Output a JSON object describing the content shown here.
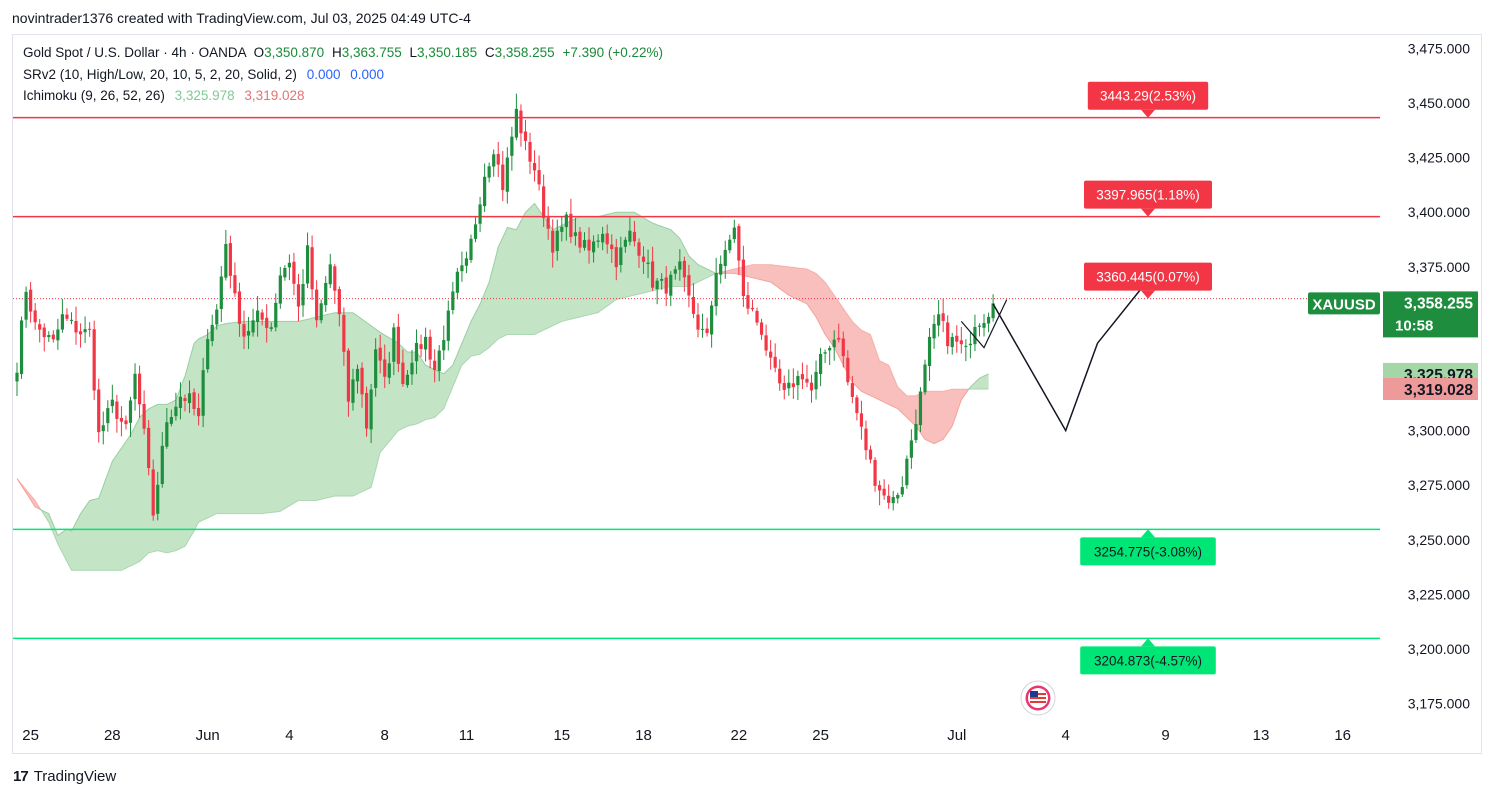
{
  "header": {
    "attribution": "novintrader1376 created with TradingView.com, Jul 03, 2025 04:49 UTC-4"
  },
  "legend": {
    "symbol_line": "Gold Spot / U.S. Dollar · 4h · OANDA",
    "o_label": "O",
    "o_value": "3,350.870",
    "h_label": "H",
    "h_value": "3,363.755",
    "l_label": "L",
    "l_value": "3,350.185",
    "c_label": "C",
    "c_value": "3,358.255",
    "change": "+7.390 (+0.22%)",
    "indicator1": "SRv2 (10, High/Low, 20, 10, 5, 2, 20, Solid, 2)",
    "indicator1_v1": "0.000",
    "indicator1_v2": "0.000",
    "indicator2": "Ichimoku (9, 26, 52, 26)",
    "indicator2_v1": "3,325.978",
    "indicator2_v2": "3,319.028"
  },
  "footer": {
    "logo_mark": "17",
    "brand": "TradingView"
  },
  "colors": {
    "up": "#26a69a",
    "upbody": "#1e8e3e",
    "down": "#f23645",
    "resistance": "#f23645",
    "support": "#00e676",
    "cloud_bull": "#a5d6a7",
    "cloud_bear": "#f7a9a7"
  },
  "chart_data": {
    "type": "candlestick",
    "symbol": "XAUUSD",
    "timeframe": "4h",
    "y_range": [
      3165,
      3480
    ],
    "y_ticks": [
      "3,475.000",
      "3,450.000",
      "3,425.000",
      "3,400.000",
      "3,375.000",
      "3,350.000",
      "3,325.000",
      "3,300.000",
      "3,275.000",
      "3,250.000",
      "3,225.000",
      "3,200.000",
      "3,175.000"
    ],
    "y_tick_values": [
      3475,
      3450,
      3425,
      3400,
      3375,
      3350,
      3325,
      3300,
      3275,
      3250,
      3225,
      3200,
      3175
    ],
    "x_ticks": [
      {
        "label": "25",
        "i": 3
      },
      {
        "label": "28",
        "i": 21
      },
      {
        "label": "Jun",
        "i": 42
      },
      {
        "label": "4",
        "i": 60
      },
      {
        "label": "8",
        "i": 81
      },
      {
        "label": "11",
        "i": 99
      },
      {
        "label": "15",
        "i": 120
      },
      {
        "label": "18",
        "i": 138
      },
      {
        "label": "22",
        "i": 159
      },
      {
        "label": "25",
        "i": 177
      },
      {
        "label": "Jul",
        "i": 207
      },
      {
        "label": "4",
        "i": 231
      },
      {
        "label": "9",
        "i": 253
      },
      {
        "label": "13",
        "i": 274
      },
      {
        "label": "16",
        "i": 292
      }
    ],
    "bar_count_visible": 300,
    "levels": [
      {
        "price": 3443.29,
        "label": "3443.29(2.53%)",
        "kind": "resistance",
        "style": "solid"
      },
      {
        "price": 3397.965,
        "label": "3397.965(1.18%)",
        "kind": "resistance",
        "style": "solid"
      },
      {
        "price": 3360.445,
        "label": "3360.445(0.07%)",
        "kind": "resistance",
        "style": "dotted"
      },
      {
        "price": 3254.775,
        "label": "3254.775(-3.08%)",
        "kind": "support",
        "style": "solid"
      },
      {
        "price": 3204.873,
        "label": "3204.873(-4.57%)",
        "kind": "support",
        "style": "solid"
      }
    ],
    "last_price": {
      "symbol": "XAUUSD",
      "price": 3358.255,
      "label": "3,358.255",
      "countdown": "10:58"
    },
    "ichimoku_labels": [
      {
        "price": 3325.978,
        "label": "3,325.978",
        "kind": "bull"
      },
      {
        "price": 3319.028,
        "label": "3,319.028",
        "kind": "bear"
      }
    ],
    "projection_path": [
      {
        "i": 215,
        "p": 3358
      },
      {
        "i": 231,
        "p": 3300
      },
      {
        "i": 238,
        "p": 3340
      },
      {
        "i": 248,
        "p": 3366
      }
    ],
    "anchors": [
      [
        0,
        3330
      ],
      [
        2,
        3365
      ],
      [
        4,
        3348
      ],
      [
        8,
        3340
      ],
      [
        10,
        3352
      ],
      [
        14,
        3345
      ],
      [
        16,
        3345
      ],
      [
        18,
        3298
      ],
      [
        21,
        3312
      ],
      [
        24,
        3300
      ],
      [
        26,
        3325
      ],
      [
        28,
        3298
      ],
      [
        30,
        3262
      ],
      [
        33,
        3305
      ],
      [
        36,
        3316
      ],
      [
        38,
        3314
      ],
      [
        40,
        3305
      ],
      [
        42,
        3345
      ],
      [
        44,
        3355
      ],
      [
        46,
        3386
      ],
      [
        48,
        3360
      ],
      [
        50,
        3344
      ],
      [
        53,
        3352
      ],
      [
        56,
        3348
      ],
      [
        58,
        3372
      ],
      [
        60,
        3378
      ],
      [
        62,
        3356
      ],
      [
        64,
        3382
      ],
      [
        66,
        3348
      ],
      [
        69,
        3376
      ],
      [
        71,
        3352
      ],
      [
        73,
        3314
      ],
      [
        75,
        3330
      ],
      [
        77,
        3302
      ],
      [
        79,
        3338
      ],
      [
        81,
        3322
      ],
      [
        83,
        3345
      ],
      [
        85,
        3322
      ],
      [
        87,
        3334
      ],
      [
        90,
        3342
      ],
      [
        92,
        3328
      ],
      [
        95,
        3352
      ],
      [
        97,
        3370
      ],
      [
        99,
        3376
      ],
      [
        101,
        3396
      ],
      [
        103,
        3418
      ],
      [
        105,
        3430
      ],
      [
        107,
        3412
      ],
      [
        110,
        3446
      ],
      [
        112,
        3430
      ],
      [
        114,
        3420
      ],
      [
        116,
        3400
      ],
      [
        118,
        3385
      ],
      [
        121,
        3396
      ],
      [
        123,
        3388
      ],
      [
        126,
        3382
      ],
      [
        129,
        3392
      ],
      [
        132,
        3378
      ],
      [
        135,
        3390
      ],
      [
        138,
        3380
      ],
      [
        140,
        3368
      ],
      [
        143,
        3366
      ],
      [
        146,
        3374
      ],
      [
        148,
        3360
      ],
      [
        150,
        3348
      ],
      [
        152,
        3342
      ],
      [
        154,
        3374
      ],
      [
        156,
        3380
      ],
      [
        158,
        3394
      ],
      [
        160,
        3360
      ],
      [
        162,
        3354
      ],
      [
        164,
        3346
      ],
      [
        166,
        3330
      ],
      [
        169,
        3316
      ],
      [
        171,
        3322
      ],
      [
        173,
        3326
      ],
      [
        175,
        3318
      ],
      [
        177,
        3332
      ],
      [
        179,
        3340
      ],
      [
        181,
        3344
      ],
      [
        183,
        3322
      ],
      [
        185,
        3308
      ],
      [
        187,
        3292
      ],
      [
        189,
        3278
      ],
      [
        191,
        3270
      ],
      [
        193,
        3268
      ],
      [
        195,
        3276
      ],
      [
        197,
        3296
      ],
      [
        199,
        3316
      ],
      [
        201,
        3340
      ],
      [
        203,
        3352
      ],
      [
        205,
        3342
      ],
      [
        207,
        3340
      ],
      [
        209,
        3336
      ],
      [
        211,
        3350
      ],
      [
        213,
        3352
      ],
      [
        215,
        3358
      ]
    ],
    "cloud": {
      "span_a": [
        [
          0,
          3278
        ],
        [
          4,
          3265
        ],
        [
          7,
          3262
        ],
        [
          9,
          3252
        ],
        [
          11,
          3255
        ],
        [
          12,
          3254
        ],
        [
          14,
          3262
        ],
        [
          16,
          3268
        ],
        [
          18,
          3269
        ],
        [
          21,
          3286
        ],
        [
          23,
          3292
        ],
        [
          25,
          3298
        ],
        [
          27,
          3306
        ],
        [
          29,
          3310
        ],
        [
          31,
          3312
        ],
        [
          33,
          3312
        ],
        [
          35,
          3314
        ],
        [
          37,
          3325
        ],
        [
          39,
          3340
        ],
        [
          40,
          3342
        ],
        [
          42,
          3344
        ],
        [
          44,
          3348
        ],
        [
          46,
          3349
        ],
        [
          50,
          3350
        ],
        [
          54,
          3350
        ],
        [
          58,
          3350
        ],
        [
          62,
          3350
        ],
        [
          66,
          3352
        ],
        [
          70,
          3354
        ],
        [
          74,
          3354
        ],
        [
          78,
          3348
        ],
        [
          80,
          3345
        ],
        [
          84,
          3340
        ],
        [
          86,
          3336
        ],
        [
          88,
          3336
        ],
        [
          90,
          3330
        ],
        [
          92,
          3328
        ],
        [
          94,
          3326
        ],
        [
          96,
          3330
        ],
        [
          98,
          3340
        ],
        [
          100,
          3350
        ],
        [
          102,
          3358
        ],
        [
          104,
          3368
        ],
        [
          106,
          3384
        ],
        [
          108,
          3393
        ],
        [
          110,
          3392
        ],
        [
          112,
          3400
        ],
        [
          114,
          3404
        ],
        [
          116,
          3398
        ],
        [
          118,
          3392
        ],
        [
          120,
          3394
        ],
        [
          124,
          3398
        ],
        [
          128,
          3398
        ],
        [
          132,
          3400
        ],
        [
          136,
          3400
        ],
        [
          140,
          3395
        ],
        [
          144,
          3392
        ],
        [
          146,
          3388
        ],
        [
          148,
          3380
        ],
        [
          150,
          3376
        ],
        [
          152,
          3374
        ],
        [
          154,
          3372
        ],
        [
          158,
          3372
        ],
        [
          162,
          3370
        ],
        [
          166,
          3368
        ],
        [
          170,
          3362
        ],
        [
          174,
          3358
        ],
        [
          176,
          3352
        ],
        [
          178,
          3344
        ],
        [
          180,
          3338
        ],
        [
          182,
          3330
        ],
        [
          184,
          3322
        ],
        [
          186,
          3318
        ],
        [
          188,
          3316
        ],
        [
          190,
          3314
        ],
        [
          192,
          3312
        ],
        [
          194,
          3310
        ],
        [
          196,
          3306
        ],
        [
          198,
          3302
        ],
        [
          200,
          3296
        ],
        [
          202,
          3294
        ],
        [
          204,
          3296
        ],
        [
          206,
          3302
        ],
        [
          208,
          3314
        ],
        [
          210,
          3320
        ],
        [
          212,
          3324
        ],
        [
          214,
          3326
        ]
      ],
      "span_b": [
        [
          0,
          3278
        ],
        [
          4,
          3268
        ],
        [
          7,
          3258
        ],
        [
          9,
          3248
        ],
        [
          11,
          3240
        ],
        [
          12,
          3236
        ],
        [
          14,
          3236
        ],
        [
          16,
          3236
        ],
        [
          18,
          3236
        ],
        [
          21,
          3236
        ],
        [
          23,
          3236
        ],
        [
          25,
          3238
        ],
        [
          27,
          3240
        ],
        [
          29,
          3244
        ],
        [
          31,
          3245
        ],
        [
          33,
          3244
        ],
        [
          35,
          3245
        ],
        [
          37,
          3247
        ],
        [
          39,
          3254
        ],
        [
          40,
          3258
        ],
        [
          42,
          3260
        ],
        [
          44,
          3262
        ],
        [
          46,
          3262
        ],
        [
          50,
          3262
        ],
        [
          54,
          3262
        ],
        [
          58,
          3263
        ],
        [
          62,
          3268
        ],
        [
          66,
          3268
        ],
        [
          70,
          3270
        ],
        [
          74,
          3270
        ],
        [
          78,
          3274
        ],
        [
          80,
          3290
        ],
        [
          84,
          3300
        ],
        [
          86,
          3302
        ],
        [
          88,
          3303
        ],
        [
          90,
          3305
        ],
        [
          92,
          3306
        ],
        [
          94,
          3310
        ],
        [
          96,
          3320
        ],
        [
          98,
          3330
        ],
        [
          100,
          3334
        ],
        [
          102,
          3335
        ],
        [
          104,
          3338
        ],
        [
          106,
          3342
        ],
        [
          108,
          3344
        ],
        [
          110,
          3344
        ],
        [
          112,
          3344
        ],
        [
          114,
          3344
        ],
        [
          116,
          3346
        ],
        [
          118,
          3348
        ],
        [
          120,
          3350
        ],
        [
          124,
          3352
        ],
        [
          128,
          3354
        ],
        [
          132,
          3360
        ],
        [
          136,
          3362
        ],
        [
          140,
          3364
        ],
        [
          144,
          3366
        ],
        [
          146,
          3366
        ],
        [
          148,
          3366
        ],
        [
          150,
          3368
        ],
        [
          152,
          3370
        ],
        [
          154,
          3372
        ],
        [
          158,
          3374
        ],
        [
          162,
          3376
        ],
        [
          166,
          3376
        ],
        [
          170,
          3375
        ],
        [
          174,
          3374
        ],
        [
          176,
          3372
        ],
        [
          178,
          3368
        ],
        [
          180,
          3362
        ],
        [
          182,
          3356
        ],
        [
          184,
          3350
        ],
        [
          186,
          3346
        ],
        [
          188,
          3344
        ],
        [
          190,
          3332
        ],
        [
          192,
          3330
        ],
        [
          194,
          3320
        ],
        [
          196,
          3316
        ],
        [
          198,
          3316
        ],
        [
          200,
          3318
        ],
        [
          202,
          3318
        ],
        [
          204,
          3318
        ],
        [
          206,
          3319
        ],
        [
          208,
          3319
        ],
        [
          210,
          3319
        ],
        [
          212,
          3319
        ],
        [
          214,
          3319
        ]
      ]
    }
  }
}
